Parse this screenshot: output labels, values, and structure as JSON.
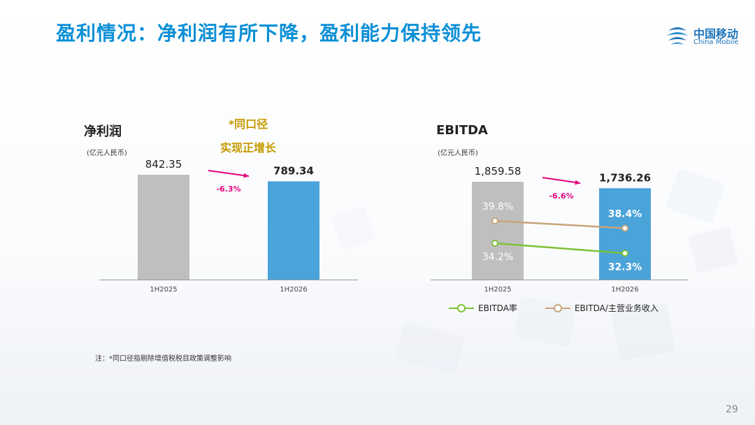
{
  "page": {
    "title": "盈利情况：净利润有所下降，盈利能力保持领先",
    "logo_cn": "中国移动",
    "logo_en": "China Mobile",
    "footnote": "注：*同口径指剔除增值税税目政策调整影响",
    "page_number": "29"
  },
  "colors": {
    "title": "#0b8fd6",
    "bar_prev": "#bfbfbf",
    "bar_curr": "#4aa3d9",
    "change_arrow": "#e6007e",
    "note_gold": "#c49a00",
    "ebitda_rate_line": "#7dc234",
    "ebitda_ratio_line": "#c8a57a"
  },
  "net_profit_panel": {
    "title": "净利润",
    "unit": "(亿元人民币)",
    "note_line1": "*同口径",
    "note_line2": "实现正增长"
  },
  "ebitda_panel": {
    "title": "EBITDA",
    "unit": "(亿元人民币)",
    "legend": [
      {
        "name": "EBITDA率",
        "color": "#7dc234"
      },
      {
        "name": "EBITDA/主营业务收入",
        "color": "#c8a57a"
      }
    ]
  },
  "chart_data": [
    {
      "type": "bar",
      "title": "净利润",
      "unit": "(亿元人民币)",
      "categories": [
        "1H2025",
        "1H2026"
      ],
      "values": [
        842.35,
        789.34
      ],
      "value_labels": [
        "842.35",
        "789.34"
      ],
      "change_label": "-6.3%",
      "ylim": [
        0,
        1000
      ]
    },
    {
      "type": "bar",
      "title": "EBITDA",
      "unit": "(亿元人民币)",
      "categories": [
        "1H2025",
        "1H2026"
      ],
      "values": [
        1859.58,
        1736.26
      ],
      "value_labels": [
        "1,859.58",
        "1,736.26"
      ],
      "change_label": "-6.6%",
      "ylim": [
        0,
        2000
      ],
      "lines": [
        {
          "name": "EBITDA/主营业务收入",
          "values": [
            39.8,
            38.4
          ],
          "labels": [
            "39.8%",
            "38.4%"
          ]
        },
        {
          "name": "EBITDA率",
          "values": [
            34.2,
            32.3
          ],
          "labels": [
            "34.2%",
            "32.3%"
          ]
        }
      ]
    }
  ]
}
